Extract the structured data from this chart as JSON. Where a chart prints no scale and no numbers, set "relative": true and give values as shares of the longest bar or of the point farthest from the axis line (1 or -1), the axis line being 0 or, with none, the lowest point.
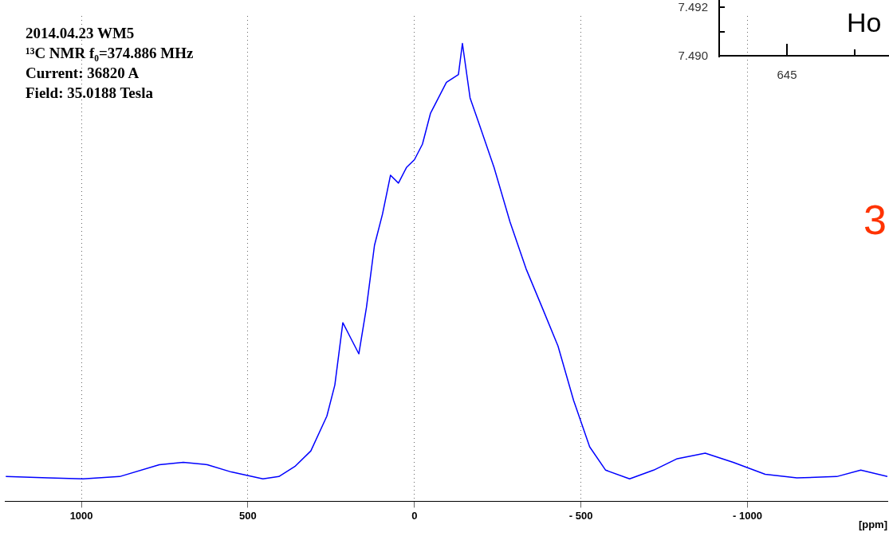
{
  "chart_data": {
    "type": "line",
    "xlabel": "[ppm]",
    "relative": true,
    "grid": "x",
    "line_style": "solid",
    "marker": "none",
    "annotations": [
      "2014.04.23 WM5",
      "¹³C NMR f₀=374.886 MHz",
      "Current: 36820 A",
      "Field: 35.0188 Tesla",
      "3",
      "Ho",
      "7.492",
      "7.490",
      "645"
    ],
    "xlim": [
      1230,
      -1420
    ],
    "xticks": [
      1000,
      500,
      0,
      {
        "value": -500,
        "label": "- 500"
      },
      {
        "value": -1000,
        "label": "- 1000"
      }
    ],
    "series": [
      {
        "color": "#0000ff",
        "x": [
          1227,
          1100,
          995,
          885,
          766,
          694,
          622,
          550,
          455,
          407,
          359,
          311,
          263,
          239,
          215,
          191,
          167,
          144,
          120,
          96,
          72,
          48,
          24,
          0,
          -24,
          -48,
          -72,
          -96,
          -132,
          -144,
          -167,
          -191,
          -239,
          -287,
          -335,
          -383,
          -431,
          -478,
          -526,
          -574,
          -646,
          -718,
          -789,
          -873,
          -957,
          -1053,
          -1148,
          -1268,
          -1340,
          -1420
        ],
        "values": [
          0.054,
          0.051,
          0.049,
          0.054,
          0.08,
          0.085,
          0.08,
          0.064,
          0.049,
          0.054,
          0.076,
          0.11,
          0.186,
          0.254,
          0.39,
          0.356,
          0.322,
          0.424,
          0.559,
          0.627,
          0.712,
          0.695,
          0.729,
          0.746,
          0.78,
          0.847,
          0.881,
          0.915,
          0.932,
          1,
          0.881,
          0.831,
          0.729,
          0.61,
          0.508,
          0.424,
          0.339,
          0.22,
          0.119,
          0.068,
          0.049,
          0.068,
          0.093,
          0.105,
          0.085,
          0.059,
          0.051,
          0.054,
          0.068,
          0.054
        ]
      }
    ]
  }
}
